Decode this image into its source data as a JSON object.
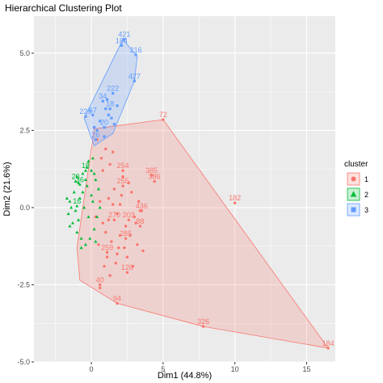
{
  "chart_data": {
    "type": "scatter",
    "title": "Hierarchical Clustering Plot",
    "xlabel": "Dim1 (44.8%)",
    "ylabel": "Dim2 (21.6%)",
    "xlim": [
      -4.0,
      17.0
    ],
    "ylim": [
      -5.0,
      6.2
    ],
    "x_ticks": [
      0,
      5,
      10,
      15
    ],
    "y_ticks": [
      -5.0,
      -2.5,
      0.0,
      2.5,
      5.0
    ],
    "x_tick_labels": [
      "0",
      "5",
      "10",
      "15"
    ],
    "y_tick_labels": [
      "-5.0",
      "-2.5",
      "0.0",
      "2.5",
      "5.0"
    ],
    "grid": true,
    "legend": {
      "title": "cluster",
      "placement": "right",
      "entries": [
        {
          "label": "1",
          "color": "#F8766D",
          "shape": "circle"
        },
        {
          "label": "2",
          "color": "#00BA38",
          "shape": "triangle"
        },
        {
          "label": "3",
          "color": "#619CFF",
          "shape": "square"
        }
      ]
    },
    "clusters": [
      {
        "name": "1",
        "color": "#F8766D",
        "hull": [
          [
            -1.0,
            -1.3
          ],
          [
            0.2,
            2.55
          ],
          [
            5.0,
            2.85
          ],
          [
            16.5,
            -4.55
          ],
          [
            7.8,
            -3.85
          ],
          [
            1.8,
            -3.1
          ],
          [
            -0.8,
            -2.35
          ]
        ],
        "labeled_points": [
          {
            "label": "72",
            "x": 5.0,
            "y": 2.85
          },
          {
            "label": "182",
            "x": 10.0,
            "y": 0.15
          },
          {
            "label": "184",
            "x": 16.5,
            "y": -4.55
          },
          {
            "label": "326",
            "x": 7.8,
            "y": -3.85
          },
          {
            "label": "94",
            "x": 1.8,
            "y": -3.1
          },
          {
            "label": "40",
            "x": 0.6,
            "y": -2.5
          },
          {
            "label": "126",
            "x": 2.5,
            "y": -2.1
          },
          {
            "label": "385",
            "x": 4.2,
            "y": 1.05
          },
          {
            "label": "386",
            "x": 4.4,
            "y": 0.85
          },
          {
            "label": "254",
            "x": 2.2,
            "y": 1.2
          },
          {
            "label": "255",
            "x": 2.2,
            "y": 0.7
          },
          {
            "label": "436",
            "x": 3.5,
            "y": -0.1
          },
          {
            "label": "203",
            "x": 2.6,
            "y": -0.4
          },
          {
            "label": "88",
            "x": 3.4,
            "y": -0.6
          },
          {
            "label": "285",
            "x": 2.4,
            "y": -1.0
          },
          {
            "label": "259",
            "x": 1.1,
            "y": -1.45
          },
          {
            "label": "270",
            "x": 1.6,
            "y": -0.4
          }
        ],
        "points": [
          [
            1.2,
            0.3
          ],
          [
            1.5,
            0.1
          ],
          [
            1.8,
            -0.2
          ],
          [
            2.1,
            0.4
          ],
          [
            2.4,
            -0.6
          ],
          [
            1.0,
            -0.8
          ],
          [
            1.4,
            -1.1
          ],
          [
            0.8,
            -0.5
          ],
          [
            0.6,
            0.2
          ],
          [
            1.9,
            -1.3
          ],
          [
            2.7,
            -0.9
          ],
          [
            3.0,
            -0.3
          ],
          [
            3.2,
            -1.2
          ],
          [
            2.5,
            -1.6
          ],
          [
            1.7,
            -1.8
          ],
          [
            1.1,
            -1.6
          ],
          [
            0.9,
            -1.9
          ],
          [
            1.3,
            -2.2
          ],
          [
            0.6,
            -2.6
          ],
          [
            2.2,
            1.0
          ],
          [
            2.6,
            0.8
          ],
          [
            3.4,
            -0.1
          ],
          [
            3.3,
            0.2
          ],
          [
            2.9,
            -1.9
          ],
          [
            3.6,
            -1.4
          ],
          [
            0.5,
            -1.2
          ],
          [
            0.3,
            -0.3
          ],
          [
            1.6,
            0.6
          ],
          [
            2.0,
            -0.9
          ],
          [
            1.2,
            -0.4
          ],
          [
            0.7,
            1.6
          ],
          [
            1.0,
            1.9
          ],
          [
            0.8,
            1.2
          ],
          [
            1.3,
            1.4
          ],
          [
            0.4,
            2.2
          ],
          [
            1.5,
            1.8
          ],
          [
            2.8,
            0.5
          ],
          [
            2.3,
            -1.3
          ],
          [
            1.8,
            -1.5
          ],
          [
            2.0,
            0.1
          ],
          [
            3.1,
            -0.5
          ]
        ]
      },
      {
        "name": "2",
        "color": "#00BA38",
        "labeled_points": [
          {
            "label": "16",
            "x": -1.0,
            "y": 0.05
          },
          {
            "label": "36",
            "x": -0.8,
            "y": 0.75
          },
          {
            "label": "18",
            "x": -0.4,
            "y": 1.2
          },
          {
            "label": "20",
            "x": -1.1,
            "y": 0.85
          }
        ],
        "points": [
          [
            -1.5,
            0.2
          ],
          [
            -1.2,
            0.5
          ],
          [
            -0.9,
            0.8
          ],
          [
            -0.6,
            1.1
          ],
          [
            -0.3,
            1.3
          ],
          [
            0.0,
            1.2
          ],
          [
            0.3,
            0.9
          ],
          [
            0.5,
            0.6
          ],
          [
            -1.6,
            -0.2
          ],
          [
            -1.3,
            -0.5
          ],
          [
            -1.0,
            -0.8
          ],
          [
            -0.7,
            -1.0
          ],
          [
            -0.4,
            -1.2
          ],
          [
            -0.1,
            -1.0
          ],
          [
            0.2,
            -0.7
          ],
          [
            0.4,
            -0.3
          ],
          [
            -0.8,
            0.3
          ],
          [
            -0.5,
            0.0
          ],
          [
            -0.2,
            -0.3
          ],
          [
            0.1,
            0.2
          ],
          [
            -1.1,
            -0.1
          ],
          [
            -0.6,
            0.5
          ],
          [
            -0.3,
            0.7
          ],
          [
            0.0,
            0.4
          ],
          [
            -0.9,
            -0.4
          ],
          [
            -1.4,
            0.0
          ],
          [
            -1.7,
            0.3
          ],
          [
            -0.2,
            1.5
          ],
          [
            0.1,
            1.6
          ],
          [
            -0.7,
            -1.3
          ],
          [
            -1.0,
            1.0
          ],
          [
            0.3,
            -1.1
          ],
          [
            0.6,
            0.0
          ],
          [
            -1.5,
            -0.6
          ],
          [
            -0.4,
            0.9
          ],
          [
            0.2,
            1.1
          ]
        ]
      },
      {
        "name": "3",
        "color": "#619CFF",
        "hull": [
          [
            -0.5,
            2.9
          ],
          [
            2.2,
            5.45
          ],
          [
            3.2,
            4.9
          ],
          [
            3.0,
            4.1
          ],
          [
            1.5,
            2.4
          ],
          [
            0.2,
            2.0
          ]
        ],
        "labeled_points": [
          {
            "label": "421",
            "x": 2.3,
            "y": 5.45
          },
          {
            "label": "184",
            "x": 2.1,
            "y": 5.25
          },
          {
            "label": "216",
            "x": 3.1,
            "y": 4.95
          },
          {
            "label": "427",
            "x": 3.0,
            "y": 4.1
          },
          {
            "label": "222",
            "x": 1.5,
            "y": 3.7
          },
          {
            "label": "34",
            "x": 0.8,
            "y": 3.45
          },
          {
            "label": "229",
            "x": -0.4,
            "y": 2.95
          },
          {
            "label": "67",
            "x": 0.1,
            "y": 3.0
          },
          {
            "label": "18",
            "x": 1.3,
            "y": 3.2
          },
          {
            "label": "20",
            "x": 0.9,
            "y": 2.6
          },
          {
            "label": "26",
            "x": 0.3,
            "y": 2.2
          }
        ],
        "points": [
          [
            1.0,
            3.2
          ],
          [
            1.2,
            3.0
          ],
          [
            0.6,
            2.8
          ],
          [
            1.4,
            2.9
          ],
          [
            0.4,
            2.5
          ],
          [
            0.9,
            2.3
          ],
          [
            1.6,
            2.7
          ],
          [
            0.2,
            2.6
          ],
          [
            1.1,
            3.5
          ],
          [
            1.8,
            3.3
          ]
        ]
      }
    ]
  }
}
